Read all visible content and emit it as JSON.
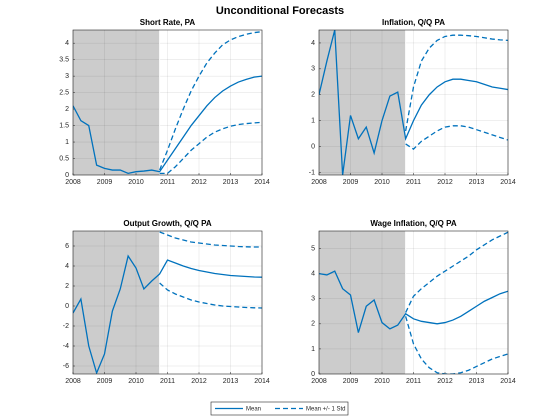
{
  "title": "Unconditional Forecasts",
  "chart_data": [
    {
      "type": "line",
      "title": "Short Rate, PA",
      "x": [
        2008,
        2008.25,
        2008.5,
        2008.75,
        2009,
        2009.25,
        2009.5,
        2009.75,
        2010,
        2010.25,
        2010.5,
        2010.75,
        2011,
        2011.25,
        2011.5,
        2011.75,
        2012,
        2012.25,
        2012.5,
        2012.75,
        2013,
        2013.25,
        2013.5,
        2013.75,
        2014
      ],
      "xlim": [
        2008,
        2014
      ],
      "xticks": [
        2008,
        2009,
        2010,
        2011,
        2012,
        2013,
        2014
      ],
      "ylim": [
        0,
        4.4
      ],
      "yticks": [
        0,
        0.5,
        1,
        1.5,
        2,
        2.5,
        3,
        3.5,
        4
      ],
      "grid": true,
      "shaded_range": [
        2008,
        2010.75
      ],
      "series": [
        {
          "name": "Mean",
          "color": "#0072bd",
          "dashed": false,
          "values": [
            2.1,
            1.65,
            1.5,
            0.3,
            0.2,
            0.15,
            0.15,
            0.05,
            0.1,
            0.12,
            0.15,
            0.1,
            0.45,
            0.8,
            1.15,
            1.5,
            1.8,
            2.1,
            2.35,
            2.55,
            2.7,
            2.82,
            2.9,
            2.97,
            3.0
          ]
        },
        {
          "name": "Mean +/- 1 Std",
          "color": "#0072bd",
          "dashed": true,
          "values": [
            null,
            null,
            null,
            null,
            null,
            null,
            null,
            null,
            null,
            null,
            null,
            0.15,
            0.75,
            1.4,
            2.0,
            2.55,
            3.0,
            3.4,
            3.7,
            3.95,
            4.1,
            4.2,
            4.27,
            4.32,
            4.35
          ]
        },
        {
          "name": "Mean +/- 1 Std",
          "color": "#0072bd",
          "dashed": true,
          "values": [
            null,
            null,
            null,
            null,
            null,
            null,
            null,
            null,
            null,
            null,
            null,
            0.05,
            0.05,
            0.25,
            0.5,
            0.75,
            0.95,
            1.15,
            1.3,
            1.4,
            1.48,
            1.53,
            1.56,
            1.58,
            1.6
          ]
        }
      ]
    },
    {
      "type": "line",
      "title": "Inflation, Q/Q PA",
      "x": [
        2008,
        2008.25,
        2008.5,
        2008.75,
        2009,
        2009.25,
        2009.5,
        2009.75,
        2010,
        2010.25,
        2010.5,
        2010.75,
        2011,
        2011.25,
        2011.5,
        2011.75,
        2012,
        2012.25,
        2012.5,
        2012.75,
        2013,
        2013.25,
        2013.5,
        2013.75,
        2014
      ],
      "xlim": [
        2008,
        2014
      ],
      "xticks": [
        2008,
        2009,
        2010,
        2011,
        2012,
        2013,
        2014
      ],
      "ylim": [
        -1.1,
        4.5
      ],
      "yticks": [
        -1,
        0,
        1,
        2,
        3,
        4
      ],
      "grid": true,
      "shaded_range": [
        2008,
        2010.75
      ],
      "series": [
        {
          "name": "Mean",
          "color": "#0072bd",
          "dashed": false,
          "values": [
            2.0,
            3.3,
            4.5,
            -1.1,
            1.2,
            0.3,
            0.75,
            -0.25,
            1.0,
            1.95,
            2.1,
            0.3,
            1.0,
            1.6,
            2.0,
            2.3,
            2.5,
            2.6,
            2.6,
            2.55,
            2.5,
            2.4,
            2.3,
            2.25,
            2.2
          ]
        },
        {
          "name": "Mean +/- 1 Std",
          "color": "#0072bd",
          "dashed": true,
          "values": [
            null,
            null,
            null,
            null,
            null,
            null,
            null,
            null,
            null,
            null,
            null,
            0.6,
            2.3,
            3.3,
            3.8,
            4.1,
            4.25,
            4.3,
            4.3,
            4.28,
            4.25,
            4.2,
            4.15,
            4.12,
            4.1
          ]
        },
        {
          "name": "Mean +/- 1 Std",
          "color": "#0072bd",
          "dashed": true,
          "values": [
            null,
            null,
            null,
            null,
            null,
            null,
            null,
            null,
            null,
            null,
            null,
            0.1,
            -0.1,
            0.2,
            0.4,
            0.6,
            0.75,
            0.8,
            0.8,
            0.75,
            0.65,
            0.55,
            0.45,
            0.35,
            0.25
          ]
        }
      ]
    },
    {
      "type": "line",
      "title": "Output Growth, Q/Q PA",
      "x": [
        2008,
        2008.25,
        2008.5,
        2008.75,
        2009,
        2009.25,
        2009.5,
        2009.75,
        2010,
        2010.25,
        2010.5,
        2010.75,
        2011,
        2011.25,
        2011.5,
        2011.75,
        2012,
        2012.25,
        2012.5,
        2012.75,
        2013,
        2013.25,
        2013.5,
        2013.75,
        2014
      ],
      "xlim": [
        2008,
        2014
      ],
      "xticks": [
        2008,
        2009,
        2010,
        2011,
        2012,
        2013,
        2014
      ],
      "ylim": [
        -6.8,
        7.5
      ],
      "yticks": [
        -6,
        -4,
        -2,
        0,
        2,
        4,
        6
      ],
      "grid": true,
      "shaded_range": [
        2008,
        2010.75
      ],
      "series": [
        {
          "name": "Mean",
          "color": "#0072bd",
          "dashed": false,
          "values": [
            -0.7,
            0.7,
            -4,
            -6.7,
            -4.8,
            -0.5,
            1.7,
            5.0,
            3.8,
            1.7,
            2.5,
            3.2,
            4.6,
            4.3,
            4.0,
            3.75,
            3.55,
            3.4,
            3.25,
            3.15,
            3.05,
            3.0,
            2.95,
            2.9,
            2.88
          ]
        },
        {
          "name": "Mean +/- 1 Std",
          "color": "#0072bd",
          "dashed": true,
          "values": [
            null,
            null,
            null,
            null,
            null,
            null,
            null,
            null,
            null,
            null,
            null,
            7.4,
            7.1,
            6.8,
            6.6,
            6.4,
            6.3,
            6.2,
            6.1,
            6.05,
            6.0,
            5.95,
            5.92,
            5.9,
            5.9
          ]
        },
        {
          "name": "Mean +/- 1 Std",
          "color": "#0072bd",
          "dashed": true,
          "values": [
            null,
            null,
            null,
            null,
            null,
            null,
            null,
            null,
            null,
            null,
            null,
            2.3,
            1.6,
            1.2,
            0.9,
            0.6,
            0.4,
            0.25,
            0.1,
            0.0,
            -0.05,
            -0.1,
            -0.15,
            -0.18,
            -0.2
          ]
        }
      ]
    },
    {
      "type": "line",
      "title": "Wage Inflation, Q/Q PA",
      "x": [
        2008,
        2008.25,
        2008.5,
        2008.75,
        2009,
        2009.25,
        2009.5,
        2009.75,
        2010,
        2010.25,
        2010.5,
        2010.75,
        2011,
        2011.25,
        2011.5,
        2011.75,
        2012,
        2012.25,
        2012.5,
        2012.75,
        2013,
        2013.25,
        2013.5,
        2013.75,
        2014
      ],
      "xlim": [
        2008,
        2014
      ],
      "xticks": [
        2008,
        2009,
        2010,
        2011,
        2012,
        2013,
        2014
      ],
      "ylim": [
        0,
        5.7
      ],
      "yticks": [
        0,
        1,
        2,
        3,
        4,
        5
      ],
      "grid": true,
      "shaded_range": [
        2008,
        2010.75
      ],
      "series": [
        {
          "name": "Mean",
          "color": "#0072bd",
          "dashed": false,
          "values": [
            4.0,
            3.95,
            4.1,
            3.4,
            3.15,
            1.65,
            2.7,
            2.95,
            2.05,
            1.8,
            1.95,
            2.4,
            2.2,
            2.1,
            2.05,
            2.0,
            2.05,
            2.15,
            2.3,
            2.5,
            2.7,
            2.9,
            3.05,
            3.2,
            3.3
          ]
        },
        {
          "name": "Mean +/- 1 Std",
          "color": "#0072bd",
          "dashed": true,
          "values": [
            null,
            null,
            null,
            null,
            null,
            null,
            null,
            null,
            null,
            null,
            null,
            2.45,
            3.1,
            3.4,
            3.65,
            3.9,
            4.1,
            4.3,
            4.5,
            4.7,
            4.95,
            5.15,
            5.35,
            5.5,
            5.65
          ]
        },
        {
          "name": "Mean +/- 1 Std",
          "color": "#0072bd",
          "dashed": true,
          "values": [
            null,
            null,
            null,
            null,
            null,
            null,
            null,
            null,
            null,
            null,
            null,
            2.3,
            1.2,
            0.6,
            0.25,
            0.05,
            0.0,
            0.0,
            0.05,
            0.15,
            0.3,
            0.45,
            0.6,
            0.7,
            0.8
          ]
        }
      ]
    }
  ]
}
